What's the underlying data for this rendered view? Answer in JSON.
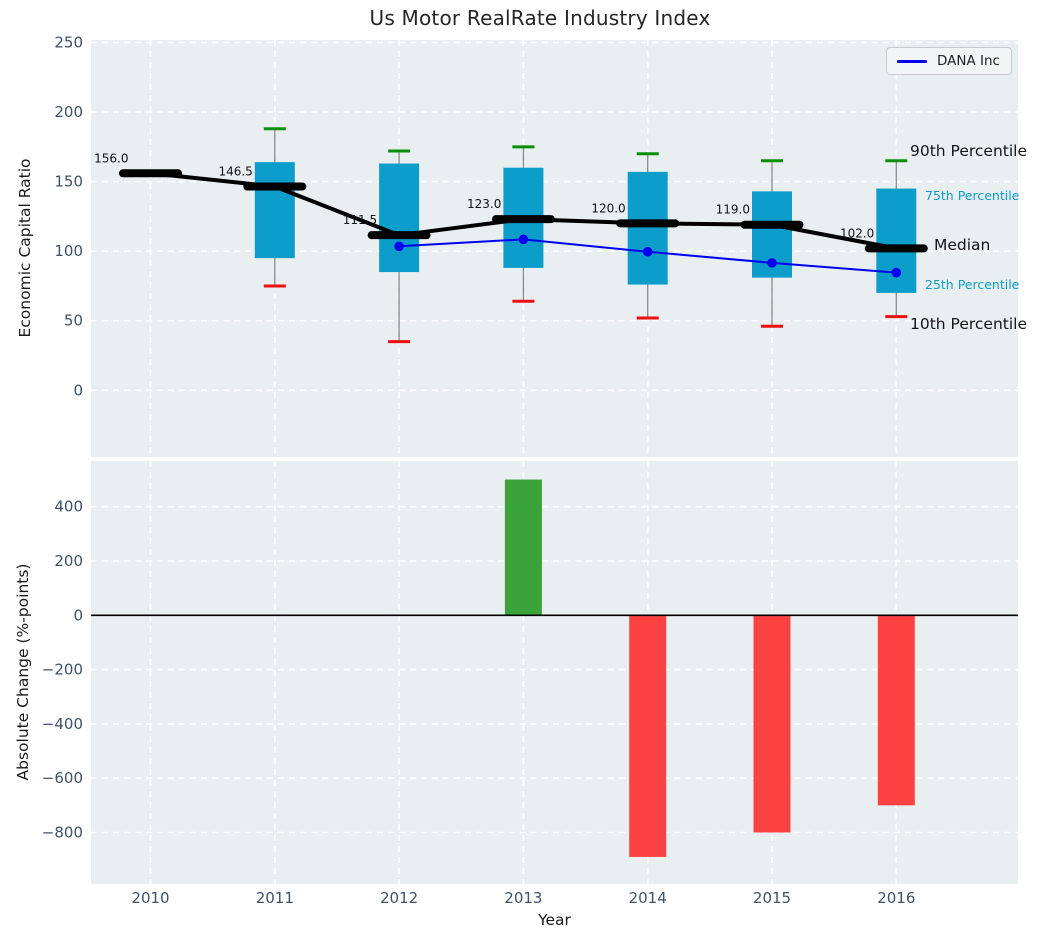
{
  "title": "Us Motor RealRate Industry Index",
  "legend": {
    "label": "DANA Inc"
  },
  "axis_labels": {
    "top_y": "Economic Capital Ratio",
    "bottom_y": "Absolute Change (%-points)",
    "x": "Year"
  },
  "annotations": {
    "p90": "90th Percentile",
    "p75": "75th Percentile",
    "median": "Median",
    "p25": "25th Percentile",
    "p10": "10th Percentile"
  },
  "ticks": {
    "years": [
      "2010",
      "2011",
      "2012",
      "2013",
      "2014",
      "2015",
      "2016"
    ]
  },
  "colors": {
    "plot_bg": "#e9eef1",
    "grid": "#ffffff",
    "tick_text": "#3f5268",
    "box_fill": "#0d9dca",
    "whisker": "#8a8a8a",
    "cap_top": "#0a8f0a",
    "cap_bottom": "#ee1010",
    "median_line": "#000000",
    "dana_line": "#0000f0",
    "bar_positive": "#3ba33b",
    "bar_negative": "#fb4242",
    "zero_line": "#000000",
    "median_label_text": "#111111",
    "annotation_small": "#0d9dca"
  },
  "chart_data": [
    {
      "type": "box",
      "title": "Us Motor RealRate Industry Index",
      "xlabel": "Year",
      "ylabel": "Economic Capital Ratio",
      "x": [
        2010,
        2011,
        2012,
        2013,
        2014,
        2015,
        2016
      ],
      "ylim": [
        -50,
        253
      ],
      "yticks": [
        0,
        50,
        100,
        150,
        200,
        250
      ],
      "grid": true,
      "legend_position": "upper right",
      "series": [
        {
          "name": "90th Percentile",
          "values": [
            null,
            188,
            172,
            175,
            170,
            165,
            165
          ]
        },
        {
          "name": "75th Percentile",
          "values": [
            null,
            164,
            163,
            160,
            157,
            143,
            145
          ]
        },
        {
          "name": "Median",
          "values": [
            156.0,
            146.5,
            111.5,
            123.0,
            120.0,
            119.0,
            102.0
          ]
        },
        {
          "name": "25th Percentile",
          "values": [
            null,
            95,
            85,
            88,
            76,
            81,
            70
          ]
        },
        {
          "name": "10th Percentile",
          "values": [
            null,
            75,
            35,
            64,
            52,
            46,
            53
          ]
        },
        {
          "name": "DANA Inc",
          "values": [
            null,
            null,
            103.5,
            108.5,
            99.6,
            91.6,
            84.6
          ]
        }
      ],
      "median_labels": [
        "156.0",
        "146.5",
        "111.5",
        "123.0",
        "120.0",
        "119.0",
        "102.0"
      ]
    },
    {
      "type": "bar",
      "xlabel": "Year",
      "ylabel": "Absolute Change (%-points)",
      "x": [
        2010,
        2011,
        2012,
        2013,
        2014,
        2015,
        2016
      ],
      "values": [
        null,
        null,
        null,
        500,
        -890,
        -800,
        -700
      ],
      "ylim": [
        -990,
        565
      ],
      "yticks": [
        400,
        200,
        0,
        -200,
        -400,
        -600,
        -800
      ],
      "grid": true
    }
  ]
}
